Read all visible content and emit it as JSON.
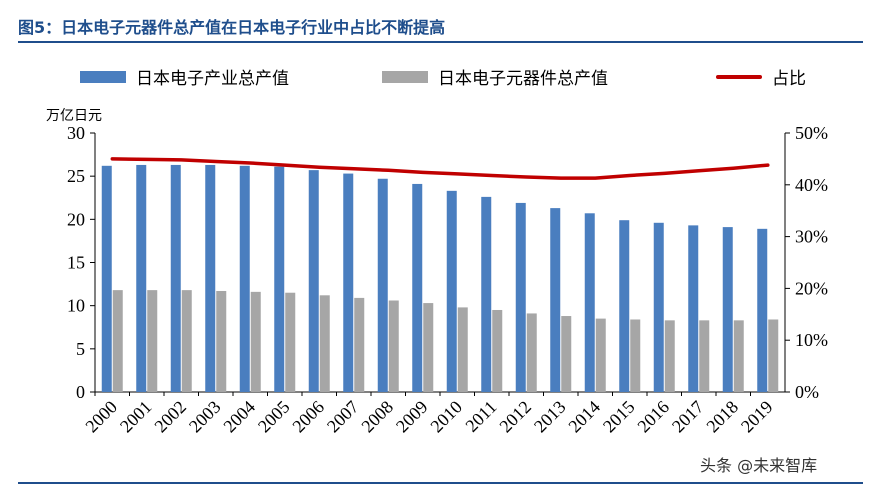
{
  "figure_title": "图5：日本电子元器件总产值在日本电子行业中占比不断提高",
  "unit_label": "万亿日元",
  "watermark": "头条 @未来智库",
  "chart_data": {
    "type": "bar",
    "categories": [
      "2000",
      "2001",
      "2002",
      "2003",
      "2004",
      "2005",
      "2006",
      "2007",
      "2008",
      "2009",
      "2010",
      "2011",
      "2012",
      "2013",
      "2014",
      "2015",
      "2016",
      "2017",
      "2018",
      "2019"
    ],
    "series": [
      {
        "name": "日本电子产业总产值",
        "type": "bar",
        "axis": "left",
        "color": "#4a7ebf",
        "values": [
          26.2,
          26.3,
          26.3,
          26.3,
          26.2,
          26.1,
          25.7,
          25.3,
          24.7,
          24.1,
          23.3,
          22.6,
          21.9,
          21.3,
          20.7,
          19.9,
          19.6,
          19.3,
          19.1,
          18.9
        ]
      },
      {
        "name": "日本电子元器件总产值",
        "type": "bar",
        "axis": "left",
        "color": "#a6a6a6",
        "values": [
          11.8,
          11.8,
          11.8,
          11.7,
          11.6,
          11.5,
          11.2,
          10.9,
          10.6,
          10.3,
          9.8,
          9.5,
          9.1,
          8.8,
          8.5,
          8.4,
          8.3,
          8.3,
          8.3,
          8.4
        ]
      },
      {
        "name": "占比",
        "type": "line",
        "axis": "right",
        "color": "#c00000",
        "values": [
          0.45,
          0.449,
          0.448,
          0.445,
          0.442,
          0.438,
          0.434,
          0.431,
          0.428,
          0.424,
          0.421,
          0.418,
          0.415,
          0.413,
          0.413,
          0.418,
          0.422,
          0.427,
          0.432,
          0.438
        ]
      }
    ],
    "left_axis": {
      "ylim": [
        0,
        30
      ],
      "ticks": [
        "0",
        "5",
        "10",
        "15",
        "20",
        "25",
        "30"
      ],
      "tick_values": [
        0,
        5,
        10,
        15,
        20,
        25,
        30
      ]
    },
    "right_axis": {
      "ylim": [
        0,
        0.5
      ],
      "ticks": [
        "0%",
        "10%",
        "20%",
        "30%",
        "40%",
        "50%"
      ],
      "tick_values": [
        0,
        0.1,
        0.2,
        0.3,
        0.4,
        0.5
      ]
    },
    "grid": false,
    "legend_position": "top"
  }
}
